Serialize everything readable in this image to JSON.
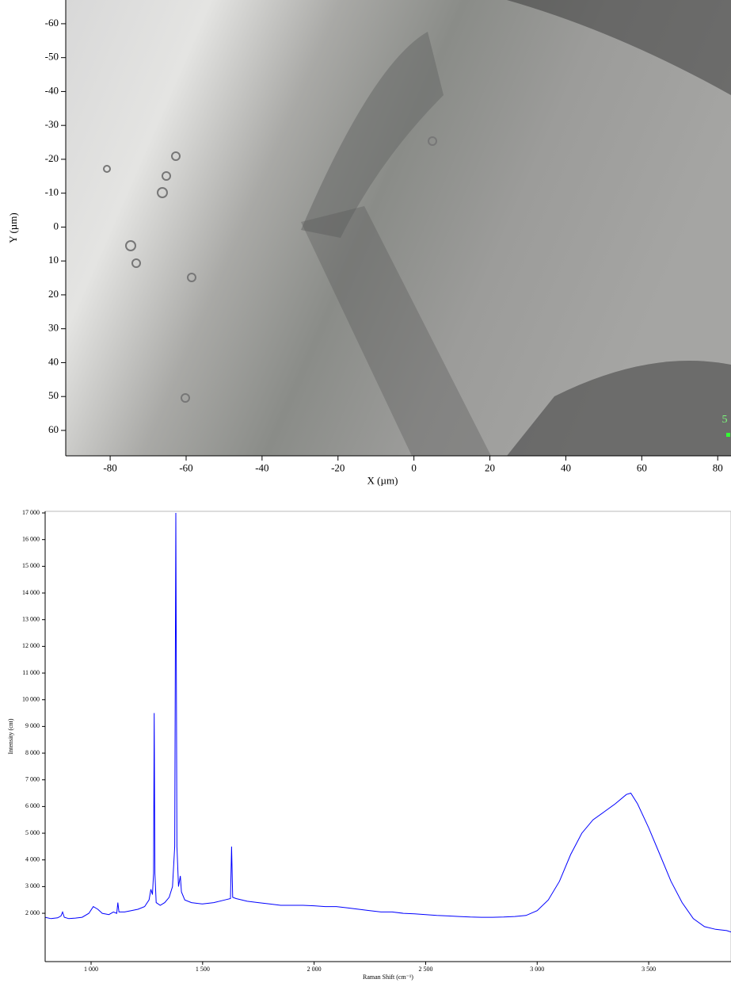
{
  "chart_data": [
    {
      "type": "image",
      "xlabel": "X (µm)",
      "ylabel": "Y (µm)",
      "xlim": [
        -91.7,
        83.5
      ],
      "ylim": [
        -67,
        67.5
      ],
      "y_inverted": true,
      "xticks": [
        -80,
        -60,
        -40,
        -20,
        0,
        20,
        40,
        60,
        80
      ],
      "yticks": [
        -60,
        -50,
        -40,
        -30,
        -20,
        -10,
        0,
        10,
        20,
        30,
        40,
        50,
        60
      ],
      "annotation": "5"
    },
    {
      "type": "line",
      "xlabel": "Raman Shift (cm⁻¹)",
      "ylabel": "Intensity (cnt)",
      "color": "#0000ff",
      "xlim": [
        794,
        3869
      ],
      "ylim": [
        190,
        17060
      ],
      "xticks": [
        {
          "value": 1000,
          "label": "1 000"
        },
        {
          "value": 1500,
          "label": "1 500"
        },
        {
          "value": 2000,
          "label": "2 000"
        },
        {
          "value": 2500,
          "label": "2 500"
        },
        {
          "value": 3000,
          "label": "3 000"
        },
        {
          "value": 3500,
          "label": "3 500"
        }
      ],
      "yticks": [
        {
          "value": 2000,
          "label": "2 000"
        },
        {
          "value": 3000,
          "label": "3 000"
        },
        {
          "value": 4000,
          "label": "4 000"
        },
        {
          "value": 5000,
          "label": "5 000"
        },
        {
          "value": 6000,
          "label": "6 000"
        },
        {
          "value": 7000,
          "label": "7 000"
        },
        {
          "value": 8000,
          "label": "8 000"
        },
        {
          "value": 9000,
          "label": "9 000"
        },
        {
          "value": 10000,
          "label": "10 000"
        },
        {
          "value": 11000,
          "label": "11 000"
        },
        {
          "value": 12000,
          "label": "12 000"
        },
        {
          "value": 13000,
          "label": "13 000"
        },
        {
          "value": 14000,
          "label": "14 000"
        },
        {
          "value": 15000,
          "label": "15 000"
        },
        {
          "value": 16000,
          "label": "16 000"
        },
        {
          "value": 17000,
          "label": "17 000"
        }
      ],
      "x": [
        794,
        820,
        850,
        865,
        872,
        880,
        900,
        930,
        960,
        990,
        1010,
        1030,
        1050,
        1080,
        1100,
        1115,
        1120,
        1125,
        1150,
        1180,
        1210,
        1240,
        1260,
        1268,
        1275,
        1280,
        1283,
        1286,
        1292,
        1310,
        1330,
        1350,
        1365,
        1375,
        1380,
        1385,
        1392,
        1400,
        1405,
        1420,
        1450,
        1500,
        1550,
        1600,
        1625,
        1630,
        1635,
        1650,
        1700,
        1750,
        1800,
        1850,
        1900,
        1950,
        2000,
        2050,
        2100,
        2150,
        2200,
        2250,
        2300,
        2350,
        2400,
        2450,
        2500,
        2550,
        2600,
        2650,
        2700,
        2750,
        2800,
        2850,
        2900,
        2950,
        3000,
        3050,
        3100,
        3150,
        3200,
        3250,
        3300,
        3350,
        3400,
        3420,
        3450,
        3500,
        3550,
        3600,
        3650,
        3700,
        3750,
        3800,
        3850,
        3869
      ],
      "values": [
        1850,
        1800,
        1830,
        1900,
        2050,
        1850,
        1800,
        1820,
        1850,
        2000,
        2250,
        2150,
        2000,
        1950,
        2050,
        2000,
        2400,
        2050,
        2050,
        2100,
        2150,
        2250,
        2500,
        2900,
        2700,
        3500,
        9500,
        3500,
        2400,
        2300,
        2400,
        2600,
        3000,
        4500,
        17000,
        4500,
        3000,
        3400,
        2800,
        2500,
        2400,
        2350,
        2400,
        2500,
        2550,
        4500,
        2600,
        2550,
        2450,
        2400,
        2350,
        2300,
        2300,
        2300,
        2280,
        2250,
        2250,
        2200,
        2150,
        2100,
        2050,
        2050,
        2000,
        1980,
        1950,
        1920,
        1900,
        1880,
        1860,
        1850,
        1850,
        1860,
        1880,
        1920,
        2100,
        2500,
        3200,
        4200,
        5000,
        5500,
        5800,
        6100,
        6450,
        6500,
        6100,
        5200,
        4200,
        3200,
        2400,
        1800,
        1500,
        1400,
        1350,
        1300
      ]
    }
  ]
}
